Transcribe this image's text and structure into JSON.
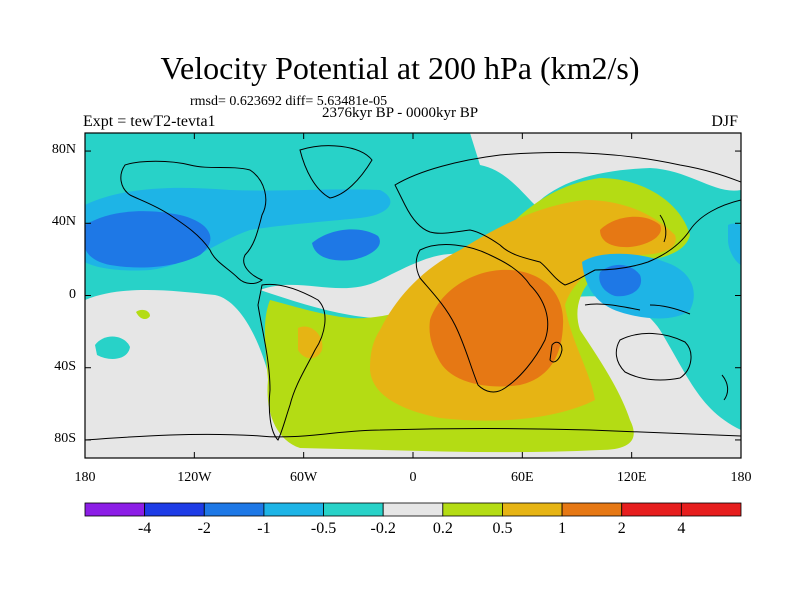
{
  "header": {
    "title": "Velocity Potential at 200 hPa (km2/s)",
    "stats": "rmsd= 0.623692 diff= 5.63481e-05",
    "left_label": "Expt = tewT2-tevta1",
    "center_label": "2376kyr BP - 0000kyr BP",
    "right_label": "DJF"
  },
  "axes": {
    "lat_labels": [
      "80N",
      "40N",
      "0",
      "40S",
      "80S"
    ],
    "lat_values": [
      80,
      40,
      0,
      -40,
      -80
    ],
    "lon_labels": [
      "180",
      "120W",
      "60W",
      "0",
      "60E",
      "120E",
      "180"
    ],
    "lon_values": [
      -180,
      -120,
      -60,
      0,
      60,
      120,
      180
    ]
  },
  "colorbar": {
    "labels": [
      "-4",
      "-2",
      "-1",
      "-0.5",
      "-0.2",
      "0.2",
      "0.5",
      "1",
      "2",
      "4"
    ],
    "colors": [
      "#8c1ee6",
      "#1e3ce6",
      "#1e78e6",
      "#1eb4e6",
      "#28d2c8",
      "#e6e6e6",
      "#b4dc14",
      "#e6b414",
      "#e67814",
      "#e61e1e",
      "#e61e1e"
    ]
  },
  "map_colors": {
    "neg_lv4": "#1e78e6",
    "neg_lv3": "#1eb4e6",
    "neg_lv2": "#28d2c8",
    "neutral": "#e6e6e6",
    "pos_lv1": "#b4dc14",
    "pos_lv2": "#e6b414",
    "pos_lv3": "#e67814"
  }
}
